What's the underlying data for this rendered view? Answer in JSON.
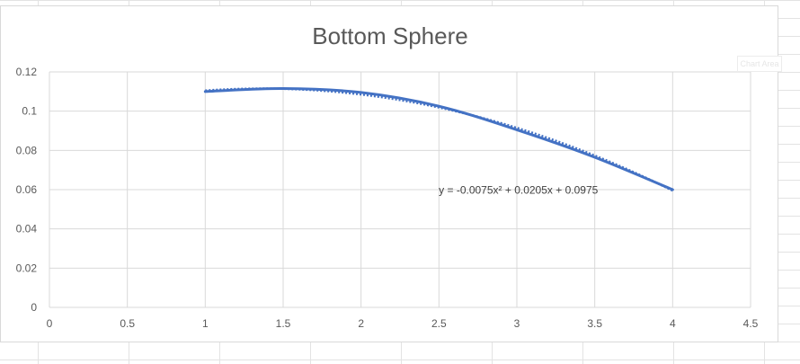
{
  "chart_data": {
    "type": "scatter",
    "title": "Bottom Sphere",
    "xlabel": "",
    "ylabel": "",
    "xlim": [
      0,
      4.5
    ],
    "ylim": [
      0,
      0.12
    ],
    "x_ticks": [
      "0",
      "0.5",
      "1",
      "1.5",
      "2",
      "2.5",
      "3",
      "3.5",
      "4",
      "4.5"
    ],
    "y_ticks": [
      "0",
      "0.02",
      "0.04",
      "0.06",
      "0.08",
      "0.1",
      "0.12"
    ],
    "grid": true,
    "series": [
      {
        "x": [
          1,
          1.5,
          2,
          2.5,
          3,
          3.5,
          4
        ],
        "values": [
          0.11,
          0.1115,
          0.1095,
          0.1025,
          0.0905,
          0.0765,
          0.06
        ],
        "style": "smooth line",
        "color": "#4472c4"
      }
    ],
    "trendline": {
      "kind": "polynomial order 2",
      "coefficients": [
        -0.0075,
        0.0205,
        0.0975
      ],
      "style": "dotted",
      "color": "#4472c4",
      "label": "y = -0.0075x² + 0.0205x + 0.0975"
    },
    "chart_area_tag": "Chart Area"
  }
}
